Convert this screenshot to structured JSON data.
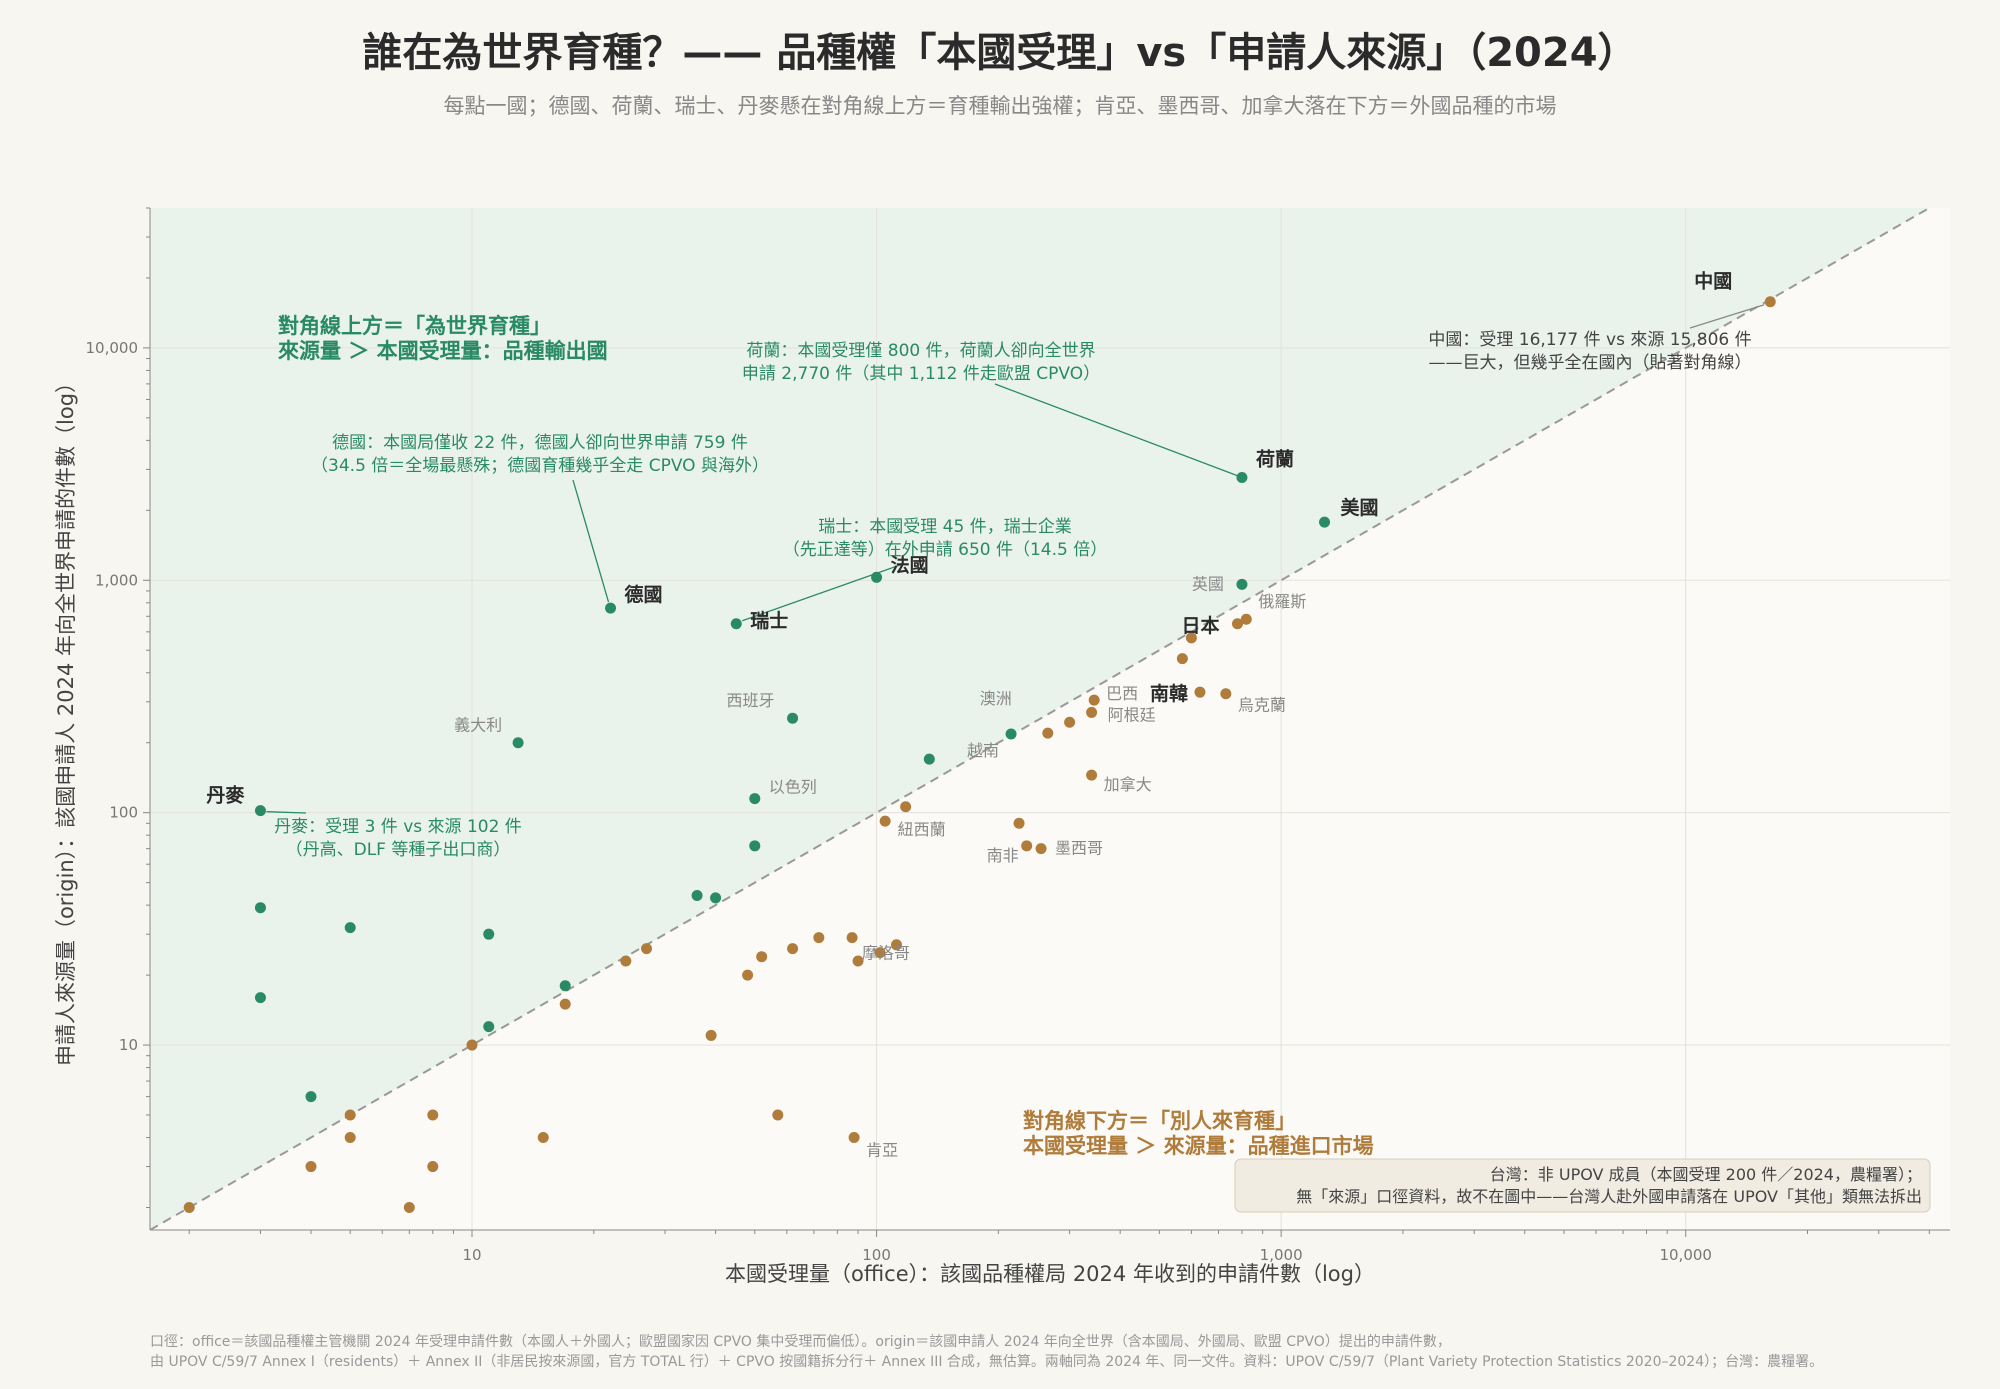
{
  "title": "誰在為世界育種？—— 品種權「本國受理」vs「申請人來源」（2024）",
  "subtitle": "每點一國；德國、荷蘭、瑞士、丹麥懸在對角線上方＝育種輸出強權；肯亞、墨西哥、加拿大落在下方＝外國品種的市場",
  "footnote": [
    "口徑：office＝該國品種權主管機關 2024 年受理申請件數（本國人＋外國人；歐盟國家因 CPVO 集中受理而偏低）。origin＝該國申請人 2024 年向全世界（含本國局、外國局、歐盟 CPVO）提出的申請件數，",
    "由 UPOV C/59/7 Annex I（residents）＋ Annex II（非居民按來源國，官方 TOTAL 行）＋ CPVO 按國籍拆分行＋ Annex III 合成，無估算。兩軸同為 2024 年、同一文件。資料：UPOV C/59/7（Plant Variety Protection Statistics 2020–2024）；台灣：農糧署。"
  ],
  "chart_data": {
    "type": "scatter",
    "xlabel": "本國受理量（office）：該國品種權局 2024 年收到的申請件數（log）",
    "ylabel": "申請人來源量（origin）：該國申請人 2024 年向全世界申請的件數（log）",
    "xscale": "log",
    "yscale": "log",
    "xlim": [
      1.6,
      45000
    ],
    "ylim": [
      1.6,
      40000
    ],
    "x_ticks": [
      "10",
      "100",
      "1,000",
      "10,000"
    ],
    "y_ticks": [
      "10",
      "100",
      "1,000",
      "10,000"
    ],
    "diagonal": "y = x",
    "colors": {
      "above": "#2a8a66",
      "below": "#b07c3c",
      "diagonal": "#999999"
    },
    "points": [
      {
        "x": 16177,
        "y": 15806,
        "label": "中國",
        "major": true
      },
      {
        "x": 800,
        "y": 2770,
        "label": "荷蘭",
        "major": true
      },
      {
        "x": 1280,
        "y": 1780,
        "label": "美國",
        "major": true
      },
      {
        "x": 22,
        "y": 759,
        "label": "德國",
        "major": true
      },
      {
        "x": 45,
        "y": 650,
        "label": "瑞士",
        "major": true
      },
      {
        "x": 100,
        "y": 1030,
        "label": "法國",
        "major": true
      },
      {
        "x": 800,
        "y": 960,
        "label": "英國",
        "major": false
      },
      {
        "x": 820,
        "y": 680,
        "label": "俄羅斯",
        "major": false
      },
      {
        "x": 780,
        "y": 650,
        "label": "日本",
        "major": true
      },
      {
        "x": 600,
        "y": 565,
        "label": "",
        "major": false
      },
      {
        "x": 570,
        "y": 460,
        "label": "",
        "major": false
      },
      {
        "x": 730,
        "y": 325,
        "label": "烏克蘭",
        "major": false
      },
      {
        "x": 630,
        "y": 330,
        "label": "南韓",
        "major": true
      },
      {
        "x": 3,
        "y": 102,
        "label": "丹麥",
        "major": true
      },
      {
        "x": 13,
        "y": 200,
        "label": "義大利",
        "major": false
      },
      {
        "x": 62,
        "y": 255,
        "label": "西班牙",
        "major": false
      },
      {
        "x": 50,
        "y": 115,
        "label": "以色列",
        "major": false
      },
      {
        "x": 50,
        "y": 72,
        "label": "",
        "major": false
      },
      {
        "x": 135,
        "y": 170,
        "label": "",
        "major": false
      },
      {
        "x": 345,
        "y": 305,
        "label": "巴西",
        "major": false
      },
      {
        "x": 340,
        "y": 270,
        "label": "阿根廷",
        "major": false
      },
      {
        "x": 300,
        "y": 245,
        "label": "",
        "major": false
      },
      {
        "x": 265,
        "y": 220,
        "label": "澳洲",
        "major": false
      },
      {
        "x": 215,
        "y": 218,
        "label": "越南",
        "major": false
      },
      {
        "x": 340,
        "y": 145,
        "label": "加拿大",
        "major": false
      },
      {
        "x": 105,
        "y": 92,
        "label": "",
        "major": false
      },
      {
        "x": 118,
        "y": 106,
        "label": "紐西蘭",
        "major": false
      },
      {
        "x": 225,
        "y": 90,
        "label": "",
        "major": false
      },
      {
        "x": 235,
        "y": 72,
        "label": "南非",
        "major": false
      },
      {
        "x": 255,
        "y": 70,
        "label": "墨西哥",
        "major": false
      },
      {
        "x": 36,
        "y": 44,
        "label": "",
        "major": false
      },
      {
        "x": 40,
        "y": 43,
        "label": "",
        "major": false
      },
      {
        "x": 3,
        "y": 39,
        "label": "",
        "major": false
      },
      {
        "x": 5,
        "y": 32,
        "label": "",
        "major": false
      },
      {
        "x": 11,
        "y": 30,
        "label": "",
        "major": false
      },
      {
        "x": 3,
        "y": 16,
        "label": "",
        "major": false
      },
      {
        "x": 17,
        "y": 18,
        "label": "",
        "major": false
      },
      {
        "x": 11,
        "y": 12,
        "label": "",
        "major": false
      },
      {
        "x": 4,
        "y": 6,
        "label": "",
        "major": false
      },
      {
        "x": 10,
        "y": 10,
        "label": "",
        "major": false
      },
      {
        "x": 17,
        "y": 15,
        "label": "",
        "major": false
      },
      {
        "x": 24,
        "y": 23,
        "label": "",
        "major": false
      },
      {
        "x": 27,
        "y": 26,
        "label": "",
        "major": false
      },
      {
        "x": 39,
        "y": 11,
        "label": "",
        "major": false
      },
      {
        "x": 48,
        "y": 20,
        "label": "",
        "major": false
      },
      {
        "x": 52,
        "y": 24,
        "label": "",
        "major": false
      },
      {
        "x": 62,
        "y": 26,
        "label": "",
        "major": false
      },
      {
        "x": 72,
        "y": 29,
        "label": "",
        "major": false
      },
      {
        "x": 87,
        "y": 29,
        "label": "",
        "major": false
      },
      {
        "x": 90,
        "y": 23,
        "label": "",
        "major": false
      },
      {
        "x": 102,
        "y": 25,
        "label": "摩洛哥",
        "major": false
      },
      {
        "x": 112,
        "y": 27,
        "label": "",
        "major": false
      },
      {
        "x": 57,
        "y": 5,
        "label": "",
        "major": false
      },
      {
        "x": 88,
        "y": 4,
        "label": "肯亞",
        "major": false
      },
      {
        "x": 2,
        "y": 2,
        "label": "",
        "major": false
      },
      {
        "x": 4,
        "y": 3,
        "label": "",
        "major": false
      },
      {
        "x": 5,
        "y": 4,
        "label": "",
        "major": false
      },
      {
        "x": 5,
        "y": 5,
        "label": "",
        "major": false
      },
      {
        "x": 7,
        "y": 2,
        "label": "",
        "major": false
      },
      {
        "x": 8,
        "y": 3,
        "label": "",
        "major": false
      },
      {
        "x": 8,
        "y": 5,
        "label": "",
        "major": false
      },
      {
        "x": 15,
        "y": 4,
        "label": "",
        "major": false
      }
    ],
    "annotations": [
      {
        "id": "china",
        "lines": [
          "中國：受理 16,177 件 vs 來源 15,806 件",
          "——巨大，但幾乎全在國內（貼著對角線）"
        ]
      },
      {
        "id": "netherlands",
        "lines": [
          "荷蘭：本國受理僅 800 件，荷蘭人卻向全世界",
          "申請 2,770 件（其中 1,112 件走歐盟 CPVO）"
        ]
      },
      {
        "id": "germany",
        "lines": [
          "德國：本國局僅收 22 件，德國人卻向世界申請 759 件",
          "（34.5 倍＝全場最懸殊；德國育種幾乎全走 CPVO 與海外）"
        ]
      },
      {
        "id": "switzerland",
        "lines": [
          "瑞士：本國受理 45 件，瑞士企業",
          "（先正達等）在外申請 650 件（14.5 倍）"
        ]
      },
      {
        "id": "denmark",
        "lines": [
          "丹麥：受理 3 件 vs 來源 102 件",
          "（丹高、DLF 等種子出口商）"
        ]
      }
    ],
    "region_above": [
      "對角線上方＝「為世界育種」",
      "來源量 ＞ 本國受理量：品種輸出國"
    ],
    "region_below": [
      "對角線下方＝「別人來育種」",
      "本國受理量 ＞ 來源量：品種進口市場"
    ],
    "note_taiwan": [
      "台灣：非 UPOV 成員（本國受理 200 件／2024，農糧署）；",
      "無「來源」口徑資料，故不在圖中——台灣人赴外國申請落在 UPOV「其他」類無法拆出"
    ]
  }
}
